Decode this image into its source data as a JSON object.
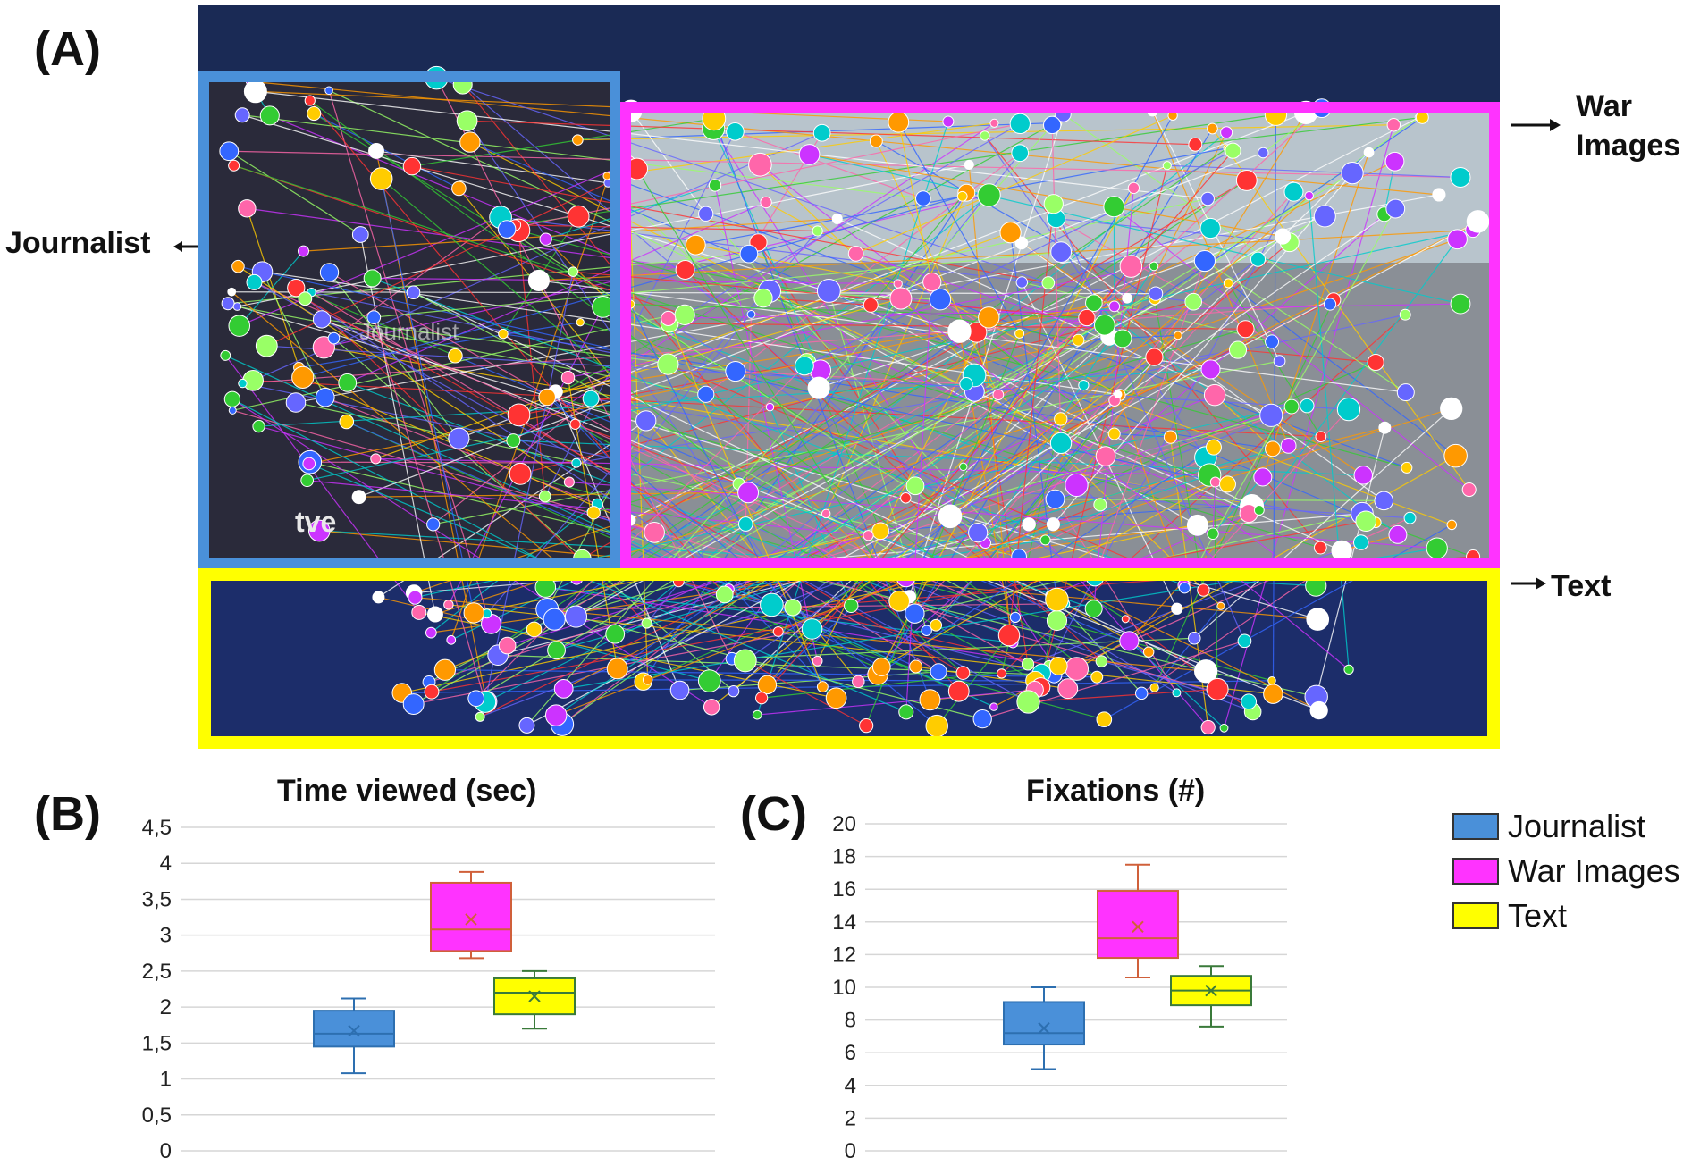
{
  "panels": {
    "a": "(A)",
    "b": "(B)",
    "c": "(C)"
  },
  "aoi_labels": {
    "journalist": "Journalist",
    "war_images": [
      "War",
      "Images"
    ],
    "text": "Text"
  },
  "scene": {
    "channel_logo": "tve",
    "overlay_text": "Journalist"
  },
  "colors": {
    "journalist": "#4a90d9",
    "war_images": "#ff33ff",
    "text": "#ffff00",
    "scene_bg": "#1a2a55"
  },
  "legend": [
    {
      "label": "Journalist",
      "color": "#4a90d9"
    },
    {
      "label": "War Images",
      "color": "#ff33ff"
    },
    {
      "label": "Text",
      "color": "#ffff00"
    }
  ],
  "chart_data": [
    {
      "type": "boxplot",
      "title": "Time viewed (sec)",
      "y_ticks": [
        "0",
        "0,5",
        "1",
        "1,5",
        "2",
        "2,5",
        "3",
        "3,5",
        "4",
        "4,5"
      ],
      "ylim": [
        0,
        4.5
      ],
      "grid": true,
      "series": [
        {
          "name": "Journalist",
          "min": 1.08,
          "q1": 1.45,
          "median": 1.63,
          "q3": 1.95,
          "max": 2.12,
          "mean": 1.67
        },
        {
          "name": "War Images",
          "min": 2.68,
          "q1": 2.78,
          "median": 3.08,
          "q3": 3.73,
          "max": 3.88,
          "mean": 3.22
        },
        {
          "name": "Text",
          "min": 1.7,
          "q1": 1.9,
          "median": 2.2,
          "q3": 2.4,
          "max": 2.5,
          "mean": 2.15
        }
      ]
    },
    {
      "type": "boxplot",
      "title": "Fixations (#)",
      "y_ticks": [
        "0",
        "2",
        "4",
        "6",
        "8",
        "10",
        "12",
        "14",
        "16",
        "18",
        "20"
      ],
      "ylim": [
        0,
        20
      ],
      "grid": true,
      "series": [
        {
          "name": "Journalist",
          "min": 5.0,
          "q1": 6.5,
          "median": 7.2,
          "q3": 9.1,
          "max": 10.0,
          "mean": 7.5
        },
        {
          "name": "War Images",
          "min": 10.6,
          "q1": 11.8,
          "median": 13.0,
          "q3": 15.9,
          "max": 17.5,
          "mean": 13.7
        },
        {
          "name": "Text",
          "min": 7.6,
          "q1": 8.9,
          "median": 9.8,
          "q3": 10.7,
          "max": 11.3,
          "mean": 9.8
        }
      ]
    }
  ]
}
